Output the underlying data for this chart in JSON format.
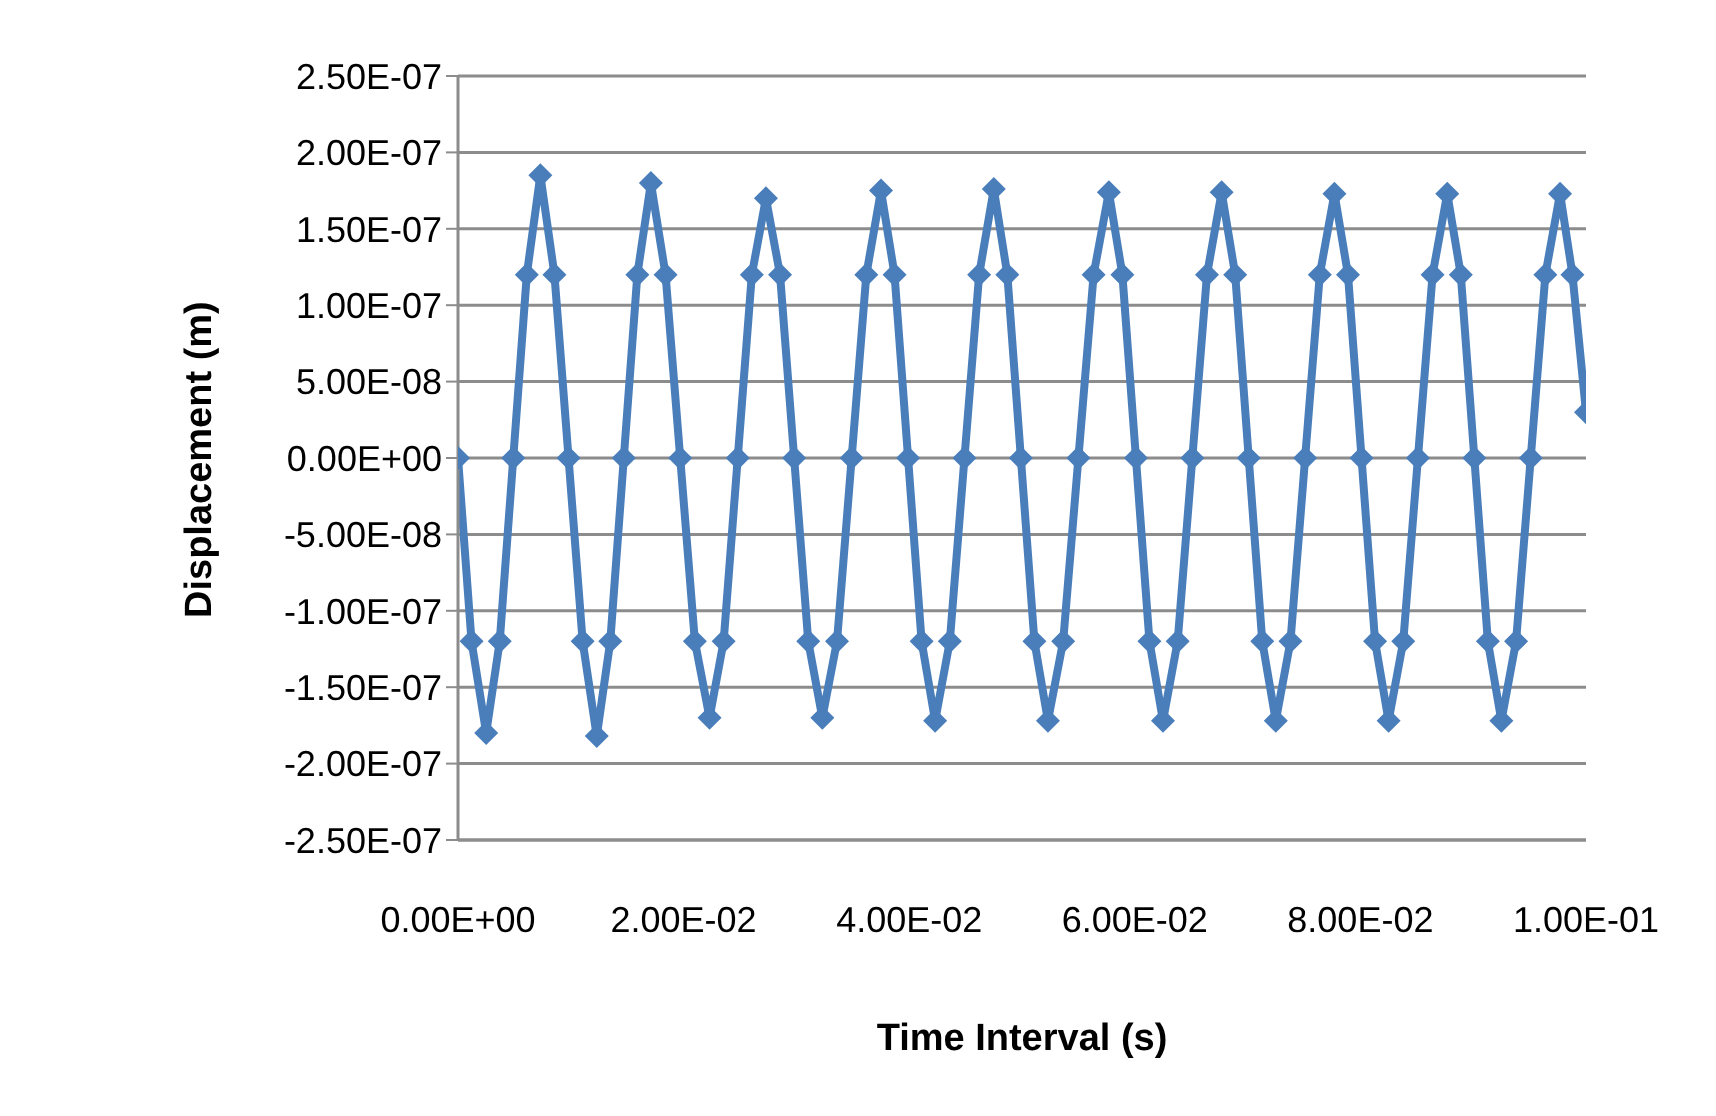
{
  "chart_data": {
    "type": "line",
    "xlabel": "Time Interval (s)",
    "ylabel": "Displacement (m)",
    "x": [
      0,
      0.0012,
      0.0025,
      0.0037,
      0.0049,
      0.0061,
      0.0073,
      0.00855,
      0.0098,
      0.01105,
      0.0123,
      0.0135,
      0.0147,
      0.0159,
      0.0171,
      0.0184,
      0.0197,
      0.021,
      0.0223,
      0.02355,
      0.0248,
      0.02605,
      0.0273,
      0.02855,
      0.0298,
      0.03105,
      0.0323,
      0.0336,
      0.0349,
      0.0362,
      0.0375,
      0.0387,
      0.0399,
      0.0411,
      0.0423,
      0.0436,
      0.0449,
      0.0462,
      0.0475,
      0.0487,
      0.0499,
      0.0511,
      0.0523,
      0.05365,
      0.055,
      0.05635,
      0.0577,
      0.0589,
      0.0601,
      0.0613,
      0.0625,
      0.0638,
      0.0651,
      0.0664,
      0.0677,
      0.0689,
      0.0701,
      0.0713,
      0.0725,
      0.0738,
      0.0751,
      0.0764,
      0.0777,
      0.0789,
      0.0801,
      0.0813,
      0.0825,
      0.0838,
      0.0851,
      0.0864,
      0.0877,
      0.0889,
      0.0901,
      0.0913,
      0.0925,
      0.0938,
      0.0951,
      0.0964,
      0.0977,
      0.0988,
      0.1
    ],
    "series": [
      {
        "color": "#4a7ebb",
        "values": [
          0,
          -1.2e-07,
          -1.8e-07,
          -1.2e-07,
          0,
          1.2e-07,
          1.85e-07,
          1.2e-07,
          0,
          -1.2e-07,
          -1.82e-07,
          -1.2e-07,
          0,
          1.2e-07,
          1.8e-07,
          1.2e-07,
          0,
          -1.2e-07,
          -1.7e-07,
          -1.2e-07,
          0,
          1.2e-07,
          1.7e-07,
          1.2e-07,
          0,
          -1.2e-07,
          -1.7e-07,
          -1.2e-07,
          0,
          1.2e-07,
          1.75e-07,
          1.2e-07,
          0,
          -1.2e-07,
          -1.72e-07,
          -1.2e-07,
          0,
          1.2e-07,
          1.76e-07,
          1.2e-07,
          0,
          -1.2e-07,
          -1.72e-07,
          -1.2e-07,
          0,
          1.2e-07,
          1.74e-07,
          1.2e-07,
          0,
          -1.2e-07,
          -1.72e-07,
          -1.2e-07,
          0,
          1.2e-07,
          1.74e-07,
          1.2e-07,
          0,
          -1.2e-07,
          -1.72e-07,
          -1.2e-07,
          0,
          1.2e-07,
          1.73e-07,
          1.2e-07,
          0,
          -1.2e-07,
          -1.72e-07,
          -1.2e-07,
          0,
          1.2e-07,
          1.73e-07,
          1.2e-07,
          0,
          -1.2e-07,
          -1.72e-07,
          -1.2e-07,
          0,
          1.2e-07,
          1.73e-07,
          1.2e-07,
          3e-08
        ]
      }
    ],
    "xlim": [
      0,
      0.1
    ],
    "xticks": [
      {
        "value": 0,
        "label": "0.00E+00"
      },
      {
        "value": 0.02,
        "label": "2.00E-02"
      },
      {
        "value": 0.04,
        "label": "4.00E-02"
      },
      {
        "value": 0.06,
        "label": "6.00E-02"
      },
      {
        "value": 0.08,
        "label": "8.00E-02"
      },
      {
        "value": 0.1,
        "label": "1.00E-01"
      }
    ],
    "ylim": [
      -2.5e-07,
      2.5e-07
    ],
    "yticks": [
      {
        "value": -2.5e-07,
        "label": "-2.50E-07"
      },
      {
        "value": -2e-07,
        "label": "-2.00E-07"
      },
      {
        "value": -1.5e-07,
        "label": "-1.50E-07"
      },
      {
        "value": -1e-07,
        "label": "-1.00E-07"
      },
      {
        "value": -5e-08,
        "label": "-5.00E-08"
      },
      {
        "value": 0,
        "label": "0.00E+00"
      },
      {
        "value": 5e-08,
        "label": "5.00E-08"
      },
      {
        "value": 1e-07,
        "label": "1.00E-07"
      },
      {
        "value": 1.5e-07,
        "label": "1.50E-07"
      },
      {
        "value": 2e-07,
        "label": "2.00E-07"
      },
      {
        "value": 2.5e-07,
        "label": "2.50E-07"
      }
    ],
    "grid": "y",
    "marker": "diamond",
    "line_style": "solid"
  }
}
